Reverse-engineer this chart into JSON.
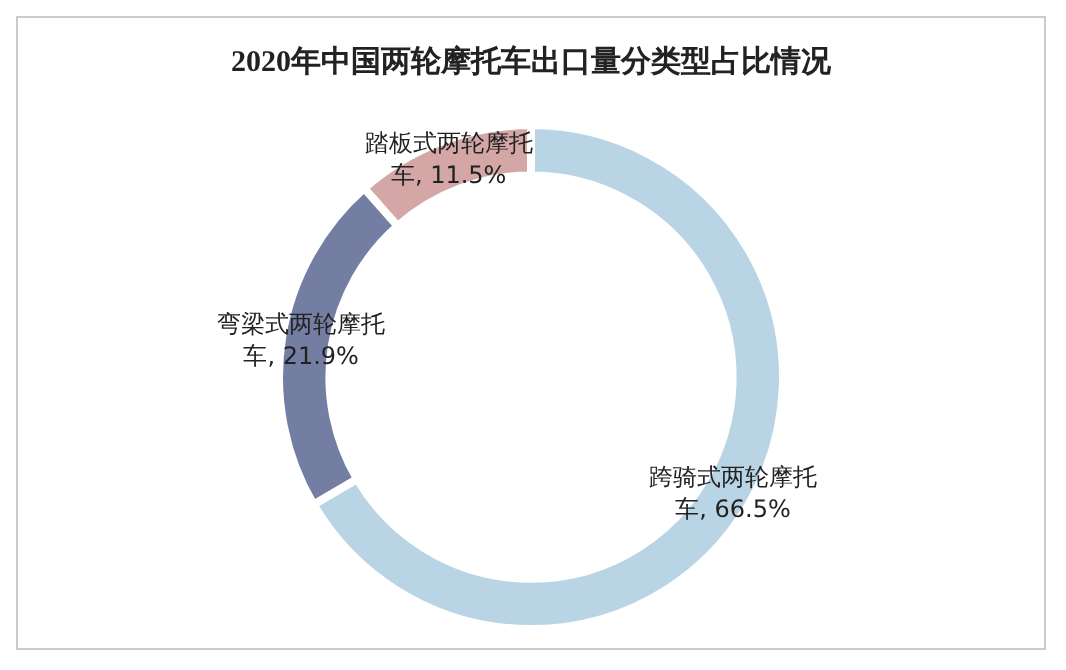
{
  "chart_data": {
    "type": "donut",
    "title": "2020年中国两轮摩托车出口量分类型占比情况",
    "categories": [
      "跨骑式两轮摩托车",
      "弯梁式两轮摩托车",
      "踏板式两轮摩托车"
    ],
    "values": [
      66.5,
      21.9,
      11.5
    ],
    "colors": [
      "#b9d5e5",
      "#747ea3",
      "#d4a6a6"
    ],
    "value_labels": [
      ", 66.5%",
      ", 21.9%",
      ", 11.5%"
    ],
    "legend": false
  }
}
